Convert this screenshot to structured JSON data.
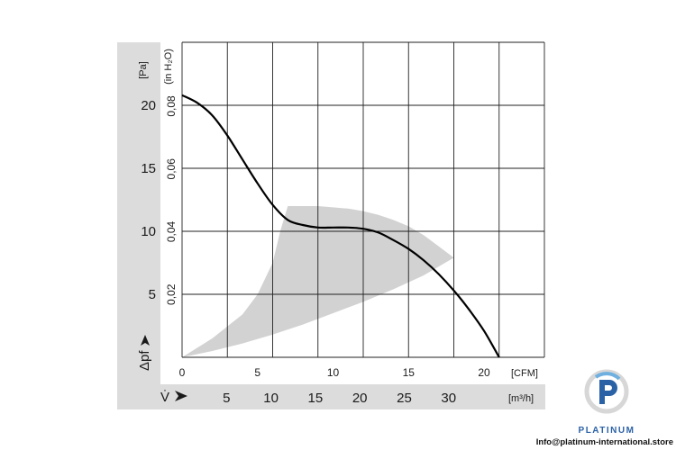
{
  "chart_data": {
    "type": "line",
    "title": "",
    "x": [
      0,
      1,
      2,
      3,
      4,
      5,
      6,
      7,
      8,
      9,
      10,
      11,
      12,
      13,
      14,
      15,
      16,
      17,
      18,
      19,
      20,
      21
    ],
    "series": [
      {
        "values": [
          20.8,
          20.2,
          19.2,
          17.6,
          15.7,
          13.8,
          12.1,
          10.9,
          10.5,
          10.3,
          10.3,
          10.3,
          10.2,
          9.9,
          9.3,
          8.6,
          7.7,
          6.6,
          5.3,
          3.8,
          2.1,
          0
        ]
      }
    ],
    "operating_range": {
      "upper": {
        "x": [
          7,
          8,
          9,
          10,
          11,
          12,
          13,
          14,
          15,
          16,
          17,
          18
        ],
        "y": [
          12,
          12,
          12,
          11.9,
          11.8,
          11.6,
          11.3,
          10.9,
          10.4,
          9.7,
          8.8,
          7.9
        ]
      },
      "lower": {
        "x": [
          0,
          2,
          4,
          6,
          8,
          10,
          12,
          14,
          16,
          18
        ],
        "y": [
          0,
          0.5,
          1.1,
          1.8,
          2.6,
          3.5,
          4.4,
          5.4,
          6.5,
          7.9
        ]
      },
      "left": {
        "x": [
          0,
          2,
          4,
          5,
          6,
          6.5,
          7
        ],
        "y": [
          0,
          1.5,
          3.4,
          5,
          7.5,
          10,
          12
        ]
      }
    },
    "xlabel": "[CFM]",
    "xlim": [
      0,
      24
    ],
    "xticks": [
      0,
      5,
      10,
      15,
      20
    ],
    "x2label": "[m³/h]",
    "x2ticks": [
      5,
      10,
      15,
      20,
      25,
      30
    ],
    "x2symbol": "V̇",
    "ylabel": "[Pa]",
    "ylim": [
      0,
      25
    ],
    "yticks": [
      5,
      10,
      15,
      20
    ],
    "y2label": "(in H₂O)",
    "y2ticks": [
      0.02,
      0.04,
      0.06,
      0.08
    ],
    "ysymbol": "Δpf",
    "grid": true
  },
  "brand": {
    "name": "PLATINUM",
    "email": "Info@platinum-international.store",
    "colors": {
      "primary": "#2b62a6",
      "accent": "#6fb0e0"
    }
  },
  "colors": {
    "panel": "#dcdcdc",
    "grid": "#222222",
    "curve": "#000000",
    "range": "#d2d2d2"
  }
}
